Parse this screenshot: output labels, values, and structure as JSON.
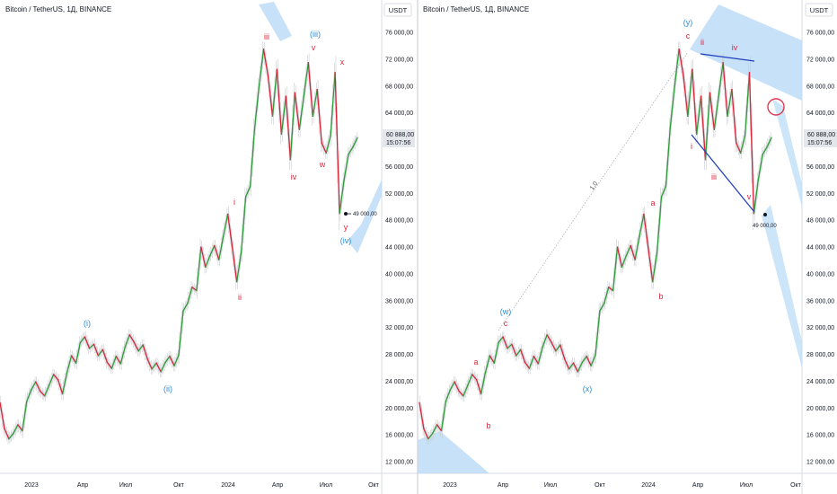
{
  "panels": [
    {
      "title": "Bitcoin / TetherUS, 1Д, BINANCE",
      "currency": "USDT",
      "price_badge": "60 888,00",
      "timer_badge": "15:07:56",
      "last_price": 60888,
      "y_ticks": [
        "76 000,00",
        "72 000,00",
        "68 000,00",
        "64 000,00",
        "60 000,00",
        "56 000,00",
        "52 000,00",
        "48 000,00",
        "44 000,00",
        "40 000,00",
        "36 000,00",
        "32 000,00",
        "28 000,00",
        "24 000,00",
        "20 000,00",
        "16 000,00",
        "12 000,00"
      ],
      "x_ticks": [
        "2023",
        "Апр",
        "Июл",
        "Окт",
        "2024",
        "Апр",
        "Июл",
        "Окт"
      ],
      "low_marker": "49 000,00"
    },
    {
      "title": "Bitcoin / TetherUS, 1Д, BINANCE",
      "currency": "USDT",
      "price_badge": "60 888,00",
      "timer_badge": "15:07:56",
      "last_price": 60888,
      "y_ticks": [
        "76 000,00",
        "72 000,00",
        "68 000,00",
        "64 000,00",
        "60 000,00",
        "56 000,00",
        "52 000,00",
        "48 000,00",
        "44 000,00",
        "40 000,00",
        "36 000,00",
        "32 000,00",
        "28 000,00",
        "24 000,00",
        "20 000,00",
        "16 000,00",
        "12 000,00"
      ],
      "x_ticks": [
        "2023",
        "Апр",
        "Июл",
        "Окт",
        "2024",
        "Апр",
        "Июл",
        "Окт"
      ],
      "low_marker": "49 000,00",
      "fib_label": "1,0"
    }
  ],
  "chart_data": [
    {
      "type": "line",
      "ylim": [
        10000,
        78000
      ],
      "y_axis_side": "right",
      "series": [
        {
          "values": [
            20800,
            16900,
            15400,
            16200,
            17500,
            16600,
            21000,
            22700,
            23900,
            22500,
            21800,
            23400,
            25000,
            24200,
            22100,
            25300,
            27800,
            26700,
            29800,
            30600,
            28900,
            29500,
            27800,
            28700,
            26800,
            25900,
            27700,
            26600,
            29100,
            30900,
            29800,
            28500,
            29400,
            27300,
            25800,
            26700,
            25400,
            26800,
            27700,
            26300,
            27900,
            34500,
            35600,
            38000,
            37500,
            44000,
            41000,
            42700,
            44200,
            42100,
            45600,
            48900,
            43900,
            38800,
            43200,
            51500,
            53000,
            61800,
            68000,
            73500,
            69500,
            63500,
            70500,
            60800,
            66500,
            57000,
            67000,
            61500,
            66500,
            71500,
            63500,
            67500,
            59500,
            58000,
            60600,
            70000,
            49000,
            54000,
            57800,
            58900,
            60300
          ]
        }
      ],
      "wave_labels": [
        "(i)",
        "(ii)",
        "i",
        "ii",
        "iii",
        "(iii)",
        "iv",
        "v",
        "w",
        "x",
        "y",
        "(iv)"
      ]
    },
    {
      "type": "line",
      "ylim": [
        10000,
        78000
      ],
      "y_axis_side": "right",
      "series": [
        {
          "values": [
            20800,
            16900,
            15400,
            16200,
            17500,
            16600,
            21000,
            22700,
            23900,
            22500,
            21800,
            23400,
            25000,
            24200,
            22100,
            25300,
            27800,
            26700,
            29800,
            30600,
            28900,
            29500,
            27800,
            28700,
            26800,
            25900,
            27700,
            26600,
            29100,
            30900,
            29800,
            28500,
            29400,
            27300,
            25800,
            26700,
            25400,
            26800,
            27700,
            26300,
            27900,
            34500,
            35600,
            38000,
            37500,
            44000,
            41000,
            42700,
            44200,
            42100,
            45600,
            48900,
            43900,
            38800,
            43200,
            51500,
            53000,
            61800,
            68000,
            73500,
            69500,
            63500,
            70500,
            60800,
            66500,
            57000,
            67000,
            61500,
            66500,
            71500,
            63500,
            67500,
            59500,
            58000,
            60600,
            70000,
            49000,
            54000,
            57800,
            58900,
            60300
          ]
        }
      ],
      "wave_labels": [
        "a",
        "b",
        "c",
        "(w)",
        "(x)",
        "a",
        "b",
        "c",
        "(y)",
        "i",
        "ii",
        "iii",
        "iv",
        "v"
      ]
    }
  ]
}
